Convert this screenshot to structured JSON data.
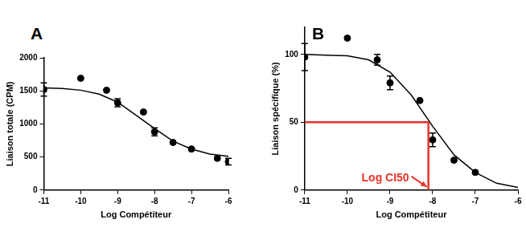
{
  "chart_data": [
    {
      "type": "scatter",
      "title": "A",
      "x_label": "Log Compétiteur",
      "y_label": "Liaison totale (CPM)",
      "xlim": [
        -11,
        -6
      ],
      "xticks": [
        -11,
        -10,
        -9,
        -8,
        -7,
        -6
      ],
      "ylim": [
        0,
        2000
      ],
      "yticks": [
        0,
        500,
        1000,
        1500,
        2000
      ],
      "grid": false,
      "series": [
        {
          "type": "scatter",
          "marker": "circle",
          "color": "#000000",
          "x": [
            -11,
            -10,
            -9.3,
            -9,
            -8.3,
            -8,
            -7.5,
            -7,
            -6.3,
            -6
          ],
          "values": [
            1520,
            1690,
            1510,
            1320,
            1180,
            880,
            720,
            620,
            480,
            430
          ],
          "errors": [
            100,
            null,
            null,
            60,
            null,
            60,
            null,
            null,
            null,
            50
          ]
        },
        {
          "type": "line",
          "line_style": "solid",
          "color": "#000000",
          "x": [
            -11,
            -10.5,
            -10,
            -9.5,
            -9,
            -8.5,
            -8,
            -7.5,
            -7,
            -6.5,
            -6
          ],
          "values": [
            1545,
            1535,
            1510,
            1450,
            1330,
            1130,
            930,
            740,
            620,
            545,
            510
          ]
        }
      ]
    },
    {
      "type": "scatter",
      "title": "B",
      "x_label": "Log Compétiteur",
      "y_label": "Liaison spécifique (%)",
      "xlim": [
        -11,
        -6
      ],
      "xticks": [
        -11,
        -10,
        -9,
        -8,
        -7,
        -6
      ],
      "ylim": [
        0,
        120
      ],
      "yticks": [
        0,
        50,
        100
      ],
      "grid": false,
      "series": [
        {
          "type": "scatter",
          "marker": "circle",
          "color": "#000000",
          "x": [
            -11,
            -10,
            -9.3,
            -9,
            -8.3,
            -8,
            -7.5,
            -7
          ],
          "values": [
            98,
            112,
            96,
            79,
            66,
            37,
            22,
            13
          ],
          "errors": [
            10,
            null,
            4,
            5,
            null,
            5,
            null,
            null
          ]
        },
        {
          "type": "line",
          "line_style": "solid",
          "color": "#000000",
          "x": [
            -11,
            -10.5,
            -10,
            -9.5,
            -9,
            -8.5,
            -8,
            -7.5,
            -7,
            -6.5,
            -6
          ],
          "values": [
            100,
            99.5,
            99,
            96,
            87,
            70,
            47,
            26,
            13,
            5,
            2
          ]
        }
      ],
      "annotations": [
        {
          "text": "Log CI50",
          "x": -8.1,
          "y": 50,
          "color": "#e8332a"
        }
      ]
    }
  ]
}
